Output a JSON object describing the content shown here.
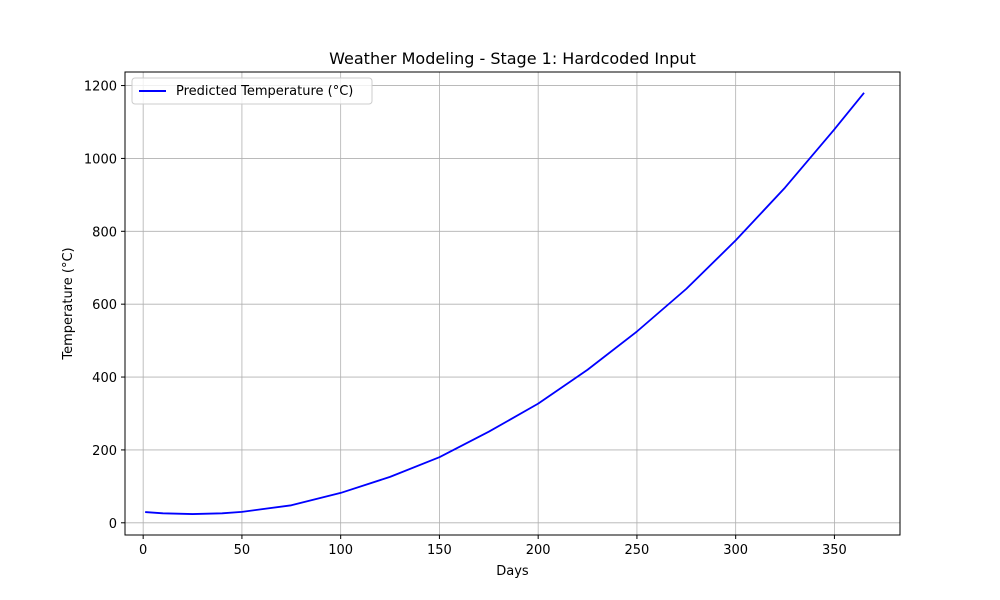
{
  "chart_data": {
    "type": "line",
    "title": "Weather Modeling - Stage 1: Hardcoded Input",
    "xlabel": "Days",
    "ylabel": "Temperature (°C)",
    "xlim": [
      -9.2,
      383.2
    ],
    "ylim": [
      -33.5,
      1237.2
    ],
    "xticks": [
      0,
      50,
      100,
      150,
      200,
      250,
      300,
      350
    ],
    "yticks": [
      0,
      200,
      400,
      600,
      800,
      1000,
      1200
    ],
    "grid": true,
    "legend_position": "top-left",
    "series": [
      {
        "name": "Predicted Temperature (°C)",
        "color": "#0000ff",
        "x": [
          1,
          10,
          25,
          40,
          50,
          75,
          100,
          125,
          150,
          175,
          200,
          225,
          250,
          275,
          300,
          325,
          350,
          365
        ],
        "y": [
          29.5,
          26,
          24,
          26,
          30,
          48,
          82,
          126,
          180,
          250,
          327,
          420,
          525,
          642,
          775,
          920,
          1080,
          1180
        ]
      }
    ]
  }
}
